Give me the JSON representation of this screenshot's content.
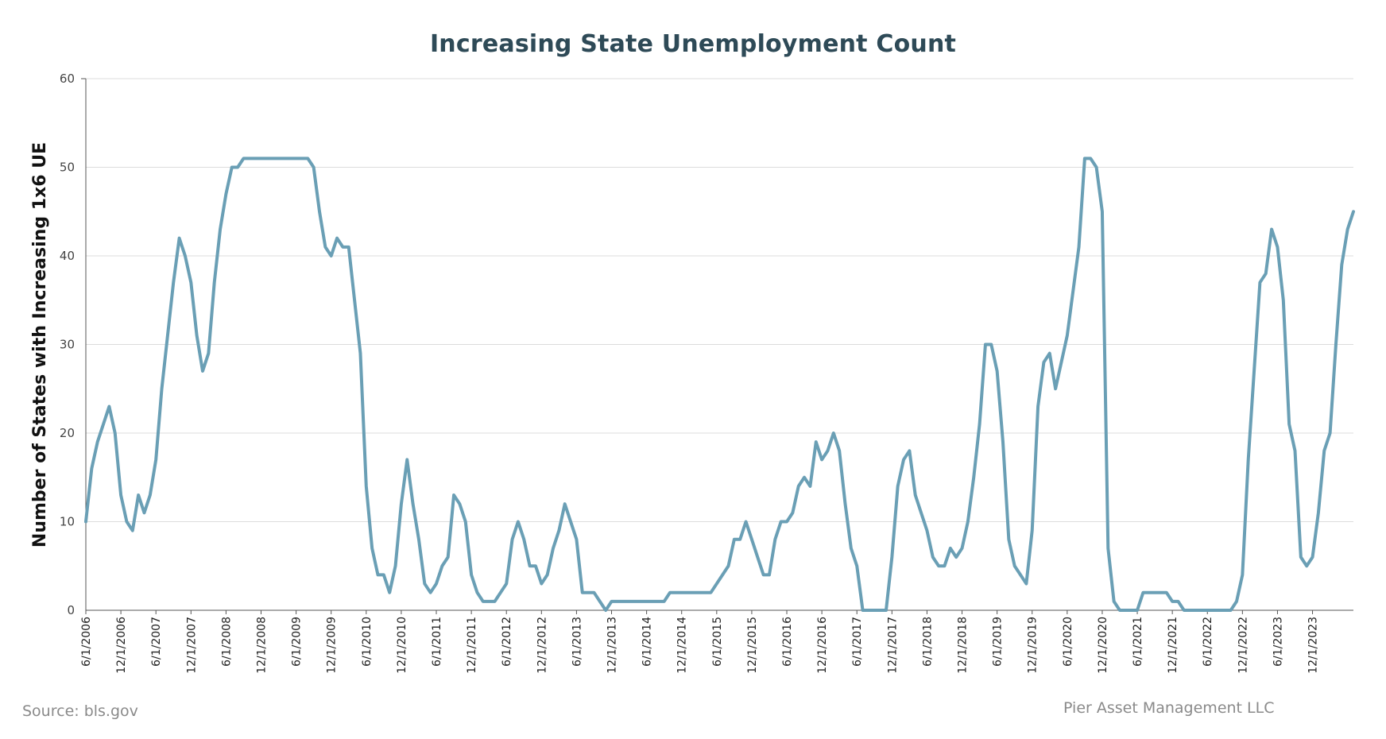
{
  "chart_data": {
    "type": "line",
    "title": "Increasing State Unemployment Count",
    "xlabel": "",
    "ylabel": "Number of States with Increasing 1x6 UE",
    "ylim": [
      0,
      60
    ],
    "yticks": [
      0,
      10,
      20,
      30,
      40,
      50,
      60
    ],
    "grid": true,
    "legend": "none",
    "line_color": "#6a9fb5",
    "start_month": "2006-06",
    "x_tick_labels": [
      "6/1/2006",
      "12/1/2006",
      "6/1/2007",
      "12/1/2007",
      "6/1/2008",
      "12/1/2008",
      "6/1/2009",
      "12/1/2009",
      "6/1/2010",
      "12/1/2010",
      "6/1/2011",
      "12/1/2011",
      "6/1/2012",
      "12/1/2012",
      "6/1/2013",
      "12/1/2013",
      "6/1/2014",
      "12/1/2014",
      "6/1/2015",
      "12/1/2015",
      "6/1/2016",
      "12/1/2016",
      "6/1/2017",
      "12/1/2017",
      "6/1/2018",
      "12/1/2018",
      "6/1/2019",
      "12/1/2019",
      "6/1/2020",
      "12/1/2020",
      "6/1/2021",
      "12/1/2021",
      "6/1/2022",
      "12/1/2022",
      "6/1/2023",
      "12/1/2023"
    ],
    "series": [
      {
        "values": [
          10,
          16,
          19,
          21,
          23,
          20,
          13,
          10,
          9,
          13,
          11,
          13,
          17,
          25,
          31,
          37,
          42,
          40,
          37,
          31,
          27,
          29,
          37,
          43,
          47,
          50,
          50,
          51,
          51,
          51,
          51,
          51,
          51,
          51,
          51,
          51,
          51,
          51,
          51,
          50,
          45,
          41,
          40,
          42,
          41,
          41,
          35,
          29,
          14,
          7,
          4,
          4,
          2,
          5,
          12,
          17,
          12,
          8,
          3,
          2,
          3,
          5,
          6,
          13,
          12,
          10,
          4,
          2,
          1,
          1,
          1,
          2,
          3,
          8,
          10,
          8,
          5,
          5,
          3,
          4,
          7,
          9,
          12,
          10,
          8,
          2,
          2,
          2,
          1,
          0,
          1,
          1,
          1,
          1,
          1,
          1,
          1,
          1,
          1,
          1,
          2,
          2,
          2,
          2,
          2,
          2,
          2,
          2,
          3,
          4,
          5,
          8,
          8,
          10,
          8,
          6,
          4,
          4,
          8,
          10,
          10,
          11,
          14,
          15,
          14,
          19,
          17,
          18,
          20,
          18,
          12,
          7,
          5,
          0,
          0,
          0,
          0,
          0,
          6,
          14,
          17,
          18,
          13,
          11,
          9,
          6,
          5,
          5,
          7,
          6,
          7,
          10,
          15,
          21,
          30,
          30,
          27,
          19,
          8,
          5,
          4,
          3,
          9,
          23,
          28,
          29,
          25,
          28,
          31,
          36,
          41,
          51,
          51,
          50,
          45,
          7,
          1,
          0,
          0,
          0,
          0,
          2,
          2,
          2,
          2,
          2,
          1,
          1,
          0,
          0,
          0,
          0,
          0,
          0,
          0,
          0,
          0,
          1,
          4,
          17,
          27,
          37,
          38,
          43,
          41,
          35,
          21,
          18,
          6,
          5,
          6,
          11,
          18,
          20,
          30,
          39,
          43,
          45
        ]
      }
    ]
  },
  "source_note": "Source: bls.gov",
  "brand_note": "Pier Asset Management LLC"
}
